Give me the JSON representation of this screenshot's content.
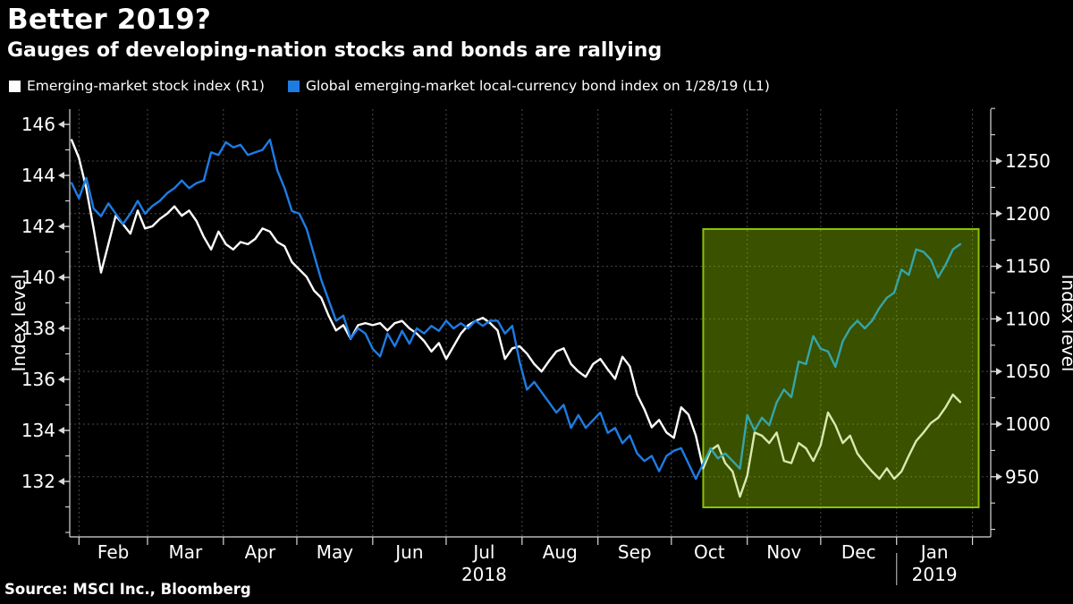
{
  "title": "Better 2019?",
  "subtitle": "Gauges of developing-nation stocks and bonds are rallying",
  "source": "Source: MSCI Inc., Bloomberg",
  "legend": [
    {
      "label": "Emerging-market stock index (R1)",
      "color": "#ffffff"
    },
    {
      "label": "Global emerging-market local-currency bond index on 1/28/19 (L1)",
      "color": "#1d7ce4"
    }
  ],
  "chart_data": {
    "type": "line",
    "x_start": "1/29/2018",
    "x_end": "1/28/2019",
    "point_interval_days": 3,
    "months": [
      "Feb",
      "Mar",
      "Apr",
      "May",
      "Jun",
      "Jul",
      "Aug",
      "Sep",
      "Oct",
      "Nov",
      "Dec",
      "Jan"
    ],
    "years": [
      "2018",
      "2019"
    ],
    "grid": "dashed, horizontal lines follow right-axis ticks, vertical lines at month boundaries",
    "left_axis": {
      "label": "Index level",
      "ticks": [
        132,
        134,
        136,
        138,
        140,
        142,
        144,
        146
      ],
      "range": [
        129.8,
        146.6
      ]
    },
    "right_axis": {
      "label": "Index level",
      "ticks": [
        950,
        1000,
        1050,
        1100,
        1150,
        1200,
        1250
      ],
      "range": [
        893,
        1300
      ]
    },
    "highlight": {
      "note": "Rally period highlighted from mid-October 2018 through late January 2019",
      "start_point_index": 86,
      "fill": "rgba(131,185,0,0.44)",
      "border": "#8cc203"
    },
    "series": [
      {
        "name": "Emerging-market stock index (R1)",
        "axis": "right",
        "color": "#ffffff",
        "highlight_color": "#d9eaae",
        "values": [
          1270,
          1253,
          1224,
          1186,
          1144,
          1171,
          1198,
          1190,
          1181,
          1203,
          1186,
          1188,
          1195,
          1200,
          1207,
          1198,
          1203,
          1193,
          1178,
          1166,
          1183,
          1171,
          1166,
          1173,
          1171,
          1176,
          1186,
          1183,
          1173,
          1169,
          1154,
          1147,
          1140,
          1127,
          1120,
          1103,
          1089,
          1094,
          1081,
          1094,
          1096,
          1094,
          1096,
          1089,
          1096,
          1098,
          1091,
          1086,
          1079,
          1069,
          1077,
          1062,
          1074,
          1086,
          1094,
          1098,
          1101,
          1096,
          1089,
          1062,
          1072,
          1074,
          1067,
          1057,
          1050,
          1060,
          1069,
          1072,
          1057,
          1050,
          1045,
          1057,
          1062,
          1052,
          1043,
          1064,
          1055,
          1028,
          1014,
          997,
          1004,
          992,
          987,
          1016,
          1009,
          989,
          958,
          975,
          980,
          963,
          955,
          931,
          951,
          992,
          989,
          982,
          992,
          965,
          963,
          982,
          977,
          965,
          980,
          1011,
          999,
          982,
          989,
          972,
          963,
          955,
          948,
          958,
          948,
          955,
          970,
          984,
          992,
          1001,
          1006,
          1016,
          1028,
          1021
        ]
      },
      {
        "name": "Global emerging-market local-currency bond index on 1/28/19 (L1)",
        "axis": "left",
        "color": "#1d7ce4",
        "highlight_color": "#35a5a8",
        "values": [
          143.7,
          143.1,
          143.9,
          142.7,
          142.4,
          142.9,
          142.5,
          142.1,
          142.5,
          143.0,
          142.5,
          142.8,
          143.0,
          143.3,
          143.5,
          143.8,
          143.5,
          143.7,
          143.8,
          144.9,
          144.8,
          145.3,
          145.1,
          145.2,
          144.8,
          144.9,
          145.0,
          145.4,
          144.2,
          143.5,
          142.6,
          142.5,
          141.9,
          140.9,
          139.9,
          139.1,
          138.3,
          138.5,
          137.6,
          138.0,
          137.8,
          137.2,
          136.9,
          137.8,
          137.3,
          137.9,
          137.4,
          138.0,
          137.8,
          138.1,
          137.9,
          138.3,
          138.0,
          138.2,
          138.0,
          138.3,
          138.1,
          138.3,
          138.3,
          137.8,
          138.1,
          136.7,
          135.6,
          135.9,
          135.5,
          135.1,
          134.7,
          135.0,
          134.1,
          134.6,
          134.1,
          134.4,
          134.7,
          133.9,
          134.1,
          133.5,
          133.8,
          133.1,
          132.8,
          133.0,
          132.4,
          133.0,
          133.2,
          133.3,
          132.7,
          132.1,
          132.7,
          133.3,
          132.9,
          133.1,
          132.8,
          132.5,
          134.6,
          134.0,
          134.5,
          134.2,
          135.1,
          135.6,
          135.3,
          136.7,
          136.6,
          137.7,
          137.2,
          137.1,
          136.5,
          137.5,
          138.0,
          138.3,
          138.0,
          138.3,
          138.8,
          139.2,
          139.4,
          140.3,
          140.1,
          141.1,
          141.0,
          140.7,
          140.0,
          140.5,
          141.1,
          141.3
        ]
      }
    ]
  }
}
